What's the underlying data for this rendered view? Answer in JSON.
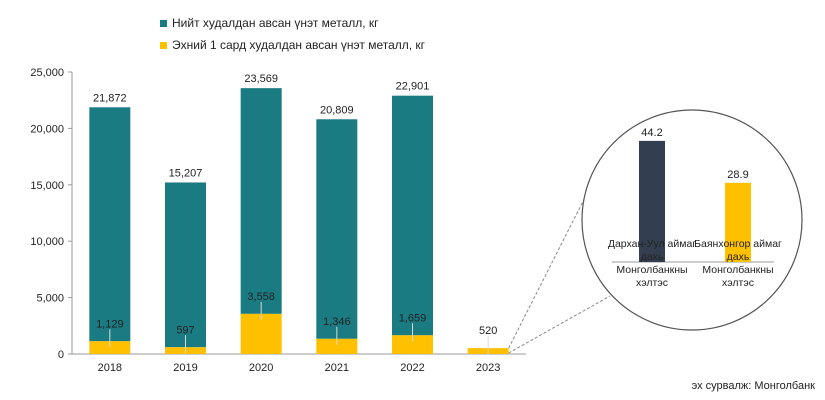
{
  "colors": {
    "total": "#1a7b82",
    "first_month": "#ffc000",
    "dark_bar": "#333f50",
    "axis": "#9a9a9a",
    "circle_stroke": "#555555"
  },
  "chart_data": [
    {
      "type": "bar",
      "categories": [
        "2018",
        "2019",
        "2020",
        "2021",
        "2022",
        "2023"
      ],
      "series": [
        {
          "name": "Нийт худалдан авсан үнэт металл, кг",
          "values": [
            21872,
            15207,
            23569,
            20809,
            22901,
            null
          ]
        },
        {
          "name": "Эхний 1 сард худалдан авсан үнэт металл, кг",
          "values": [
            1129,
            597,
            3558,
            1346,
            1659,
            520
          ]
        }
      ],
      "data_labels": {
        "total": [
          "21,872",
          "15,207",
          "23,569",
          "20,809",
          "22,901",
          ""
        ],
        "first_month": [
          "1,129",
          "597",
          "3,558",
          "1,346",
          "1,659",
          "520"
        ]
      },
      "yticks": [
        "0",
        "5,000",
        "10,000",
        "15,000",
        "20,000",
        "25,000"
      ],
      "ylim": [
        0,
        25000
      ],
      "legend_position": "top",
      "grid": false
    },
    {
      "type": "bar",
      "categories": [
        "Дархан-Уул аймаг дахь Монголбанкны хэлтэс",
        "Баянхонгор аймаг дахь Монголбанкны хэлтэс"
      ],
      "category_lines": [
        [
          "Дархан-Уул аймаг",
          "дахь",
          "Монголбанкны",
          "хэлтэс"
        ],
        [
          "Баянхонгор аймаг",
          "дахь",
          "Монголбанкны",
          "хэлтэс"
        ]
      ],
      "values": [
        44.2,
        28.9
      ],
      "data_labels": [
        "44.2",
        "28.9"
      ],
      "ylim": [
        0,
        50
      ]
    }
  ],
  "source": "эх сурвалж: Монголбанк"
}
